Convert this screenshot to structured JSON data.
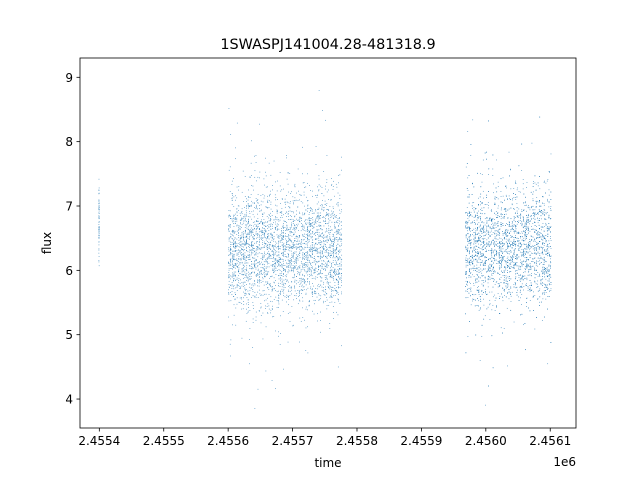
{
  "chart_data": {
    "type": "scatter",
    "title": "1SWASPJ141004.28-481318.9",
    "xlabel": "time",
    "ylabel": "flux",
    "x_offset_label": "1e6",
    "x_scale": 1000000,
    "xlim": [
      2.45537,
      2.45614
    ],
    "ylim": [
      3.55,
      9.3
    ],
    "x_ticks": [
      2.4554,
      2.4555,
      2.4556,
      2.4557,
      2.4558,
      2.4559,
      2.456,
      2.4561
    ],
    "x_tick_labels": [
      "2.4554",
      "2.4555",
      "2.4556",
      "2.4557",
      "2.4558",
      "2.4559",
      "2.4560",
      "2.4561"
    ],
    "y_ticks": [
      4,
      5,
      6,
      7,
      8,
      9
    ],
    "y_tick_labels": [
      "4",
      "5",
      "6",
      "7",
      "8",
      "9"
    ],
    "grid": false,
    "marker_color": "#1f77b4",
    "series": [
      {
        "name": "",
        "segments": [
          {
            "x_start": 2.455399,
            "x_end": 2.4554,
            "y_center": 6.75,
            "spread": 0.3,
            "min": 5.6,
            "max": 7.55,
            "density": 60
          },
          {
            "x_start": 2.4556,
            "x_end": 2.455777,
            "y_center": 6.3,
            "spread": 0.45,
            "min": 3.8,
            "max": 8.95,
            "density": 3200
          },
          {
            "x_start": 2.455968,
            "x_end": 2.456102,
            "y_center": 6.35,
            "spread": 0.45,
            "min": 3.85,
            "max": 9.05,
            "density": 3000
          }
        ]
      }
    ]
  }
}
